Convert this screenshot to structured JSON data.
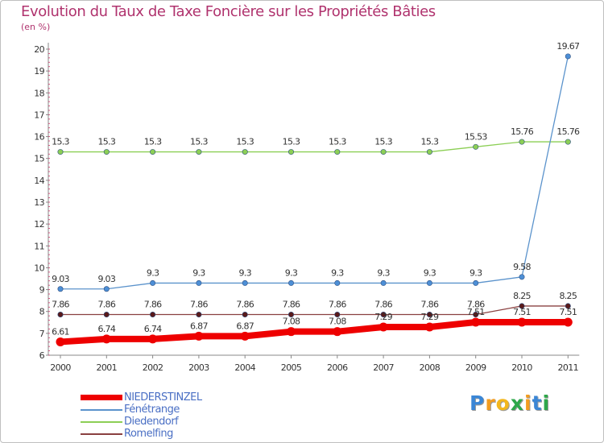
{
  "title": "Evolution du Taux de Taxe Foncière sur les Propriétés Bâties",
  "subtitle": "(en %)",
  "brand": "Proxiti",
  "colors": {
    "title": "#b0336e",
    "legend_text": "#4a6fc4",
    "axis": "#888888",
    "tick_marks": "#cc3366"
  },
  "chart_data": {
    "type": "line",
    "title": "Evolution du Taux de Taxe Foncière sur les Propriétés Bâties",
    "ylabel": "(en %)",
    "xlabel": "",
    "ylim": [
      6,
      20
    ],
    "y_ticks": [
      6,
      7,
      8,
      9,
      10,
      11,
      12,
      13,
      14,
      15,
      16,
      17,
      18,
      19,
      20
    ],
    "categories": [
      "2000",
      "2001",
      "2002",
      "2003",
      "2004",
      "2005",
      "2006",
      "2007",
      "2008",
      "2009",
      "2010",
      "2011"
    ],
    "series": [
      {
        "name": "Diedendorf",
        "color": "#8ccf55",
        "marker": "#8ccf55",
        "values": [
          15.3,
          15.3,
          15.3,
          15.3,
          15.3,
          15.3,
          15.3,
          15.3,
          15.3,
          15.53,
          15.76,
          15.76
        ],
        "labels": [
          "15.3",
          "15.3",
          "15.3",
          "15.3",
          "15.3",
          "15.3",
          "15.3",
          "15.3",
          "15.3",
          "15.53",
          "15.76",
          "15.76"
        ]
      },
      {
        "name": "Fénétrange",
        "color": "#5b93cc",
        "marker": "#4d8fd6",
        "values": [
          9.03,
          9.03,
          9.3,
          9.3,
          9.3,
          9.3,
          9.3,
          9.3,
          9.3,
          9.3,
          9.58,
          19.67
        ],
        "labels": [
          "9.03",
          "9.03",
          "9.3",
          "9.3",
          "9.3",
          "9.3",
          "9.3",
          "9.3",
          "9.3",
          "9.3",
          "9.58",
          "19.67"
        ]
      },
      {
        "name": "Romelfing",
        "color": "#8a4040",
        "marker": "#5a1a1a",
        "values": [
          7.86,
          7.86,
          7.86,
          7.86,
          7.86,
          7.86,
          7.86,
          7.86,
          7.86,
          7.86,
          8.25,
          8.25
        ],
        "labels": [
          "7.86",
          "7.86",
          "7.86",
          "7.86",
          "7.86",
          "7.86",
          "7.86",
          "7.86",
          "7.86",
          "7.86",
          "8.25",
          "8.25"
        ]
      },
      {
        "name": "NIEDERSTINZEL",
        "color": "#ee0000",
        "marker": "#ee0000",
        "values": [
          6.61,
          6.74,
          6.74,
          6.87,
          6.87,
          7.08,
          7.08,
          7.29,
          7.29,
          7.51,
          7.51,
          7.51
        ],
        "labels": [
          "6.61",
          "6.74",
          "6.74",
          "6.87",
          "6.87",
          "7.08",
          "7.08",
          "7.29",
          "7.29",
          "7.51",
          "7.51",
          "7.51"
        ]
      }
    ],
    "legend": [
      "NIEDERSTINZEL",
      "Fénétrange",
      "Diedendorf",
      "Romelfing"
    ],
    "legend_position": "bottom-left"
  }
}
